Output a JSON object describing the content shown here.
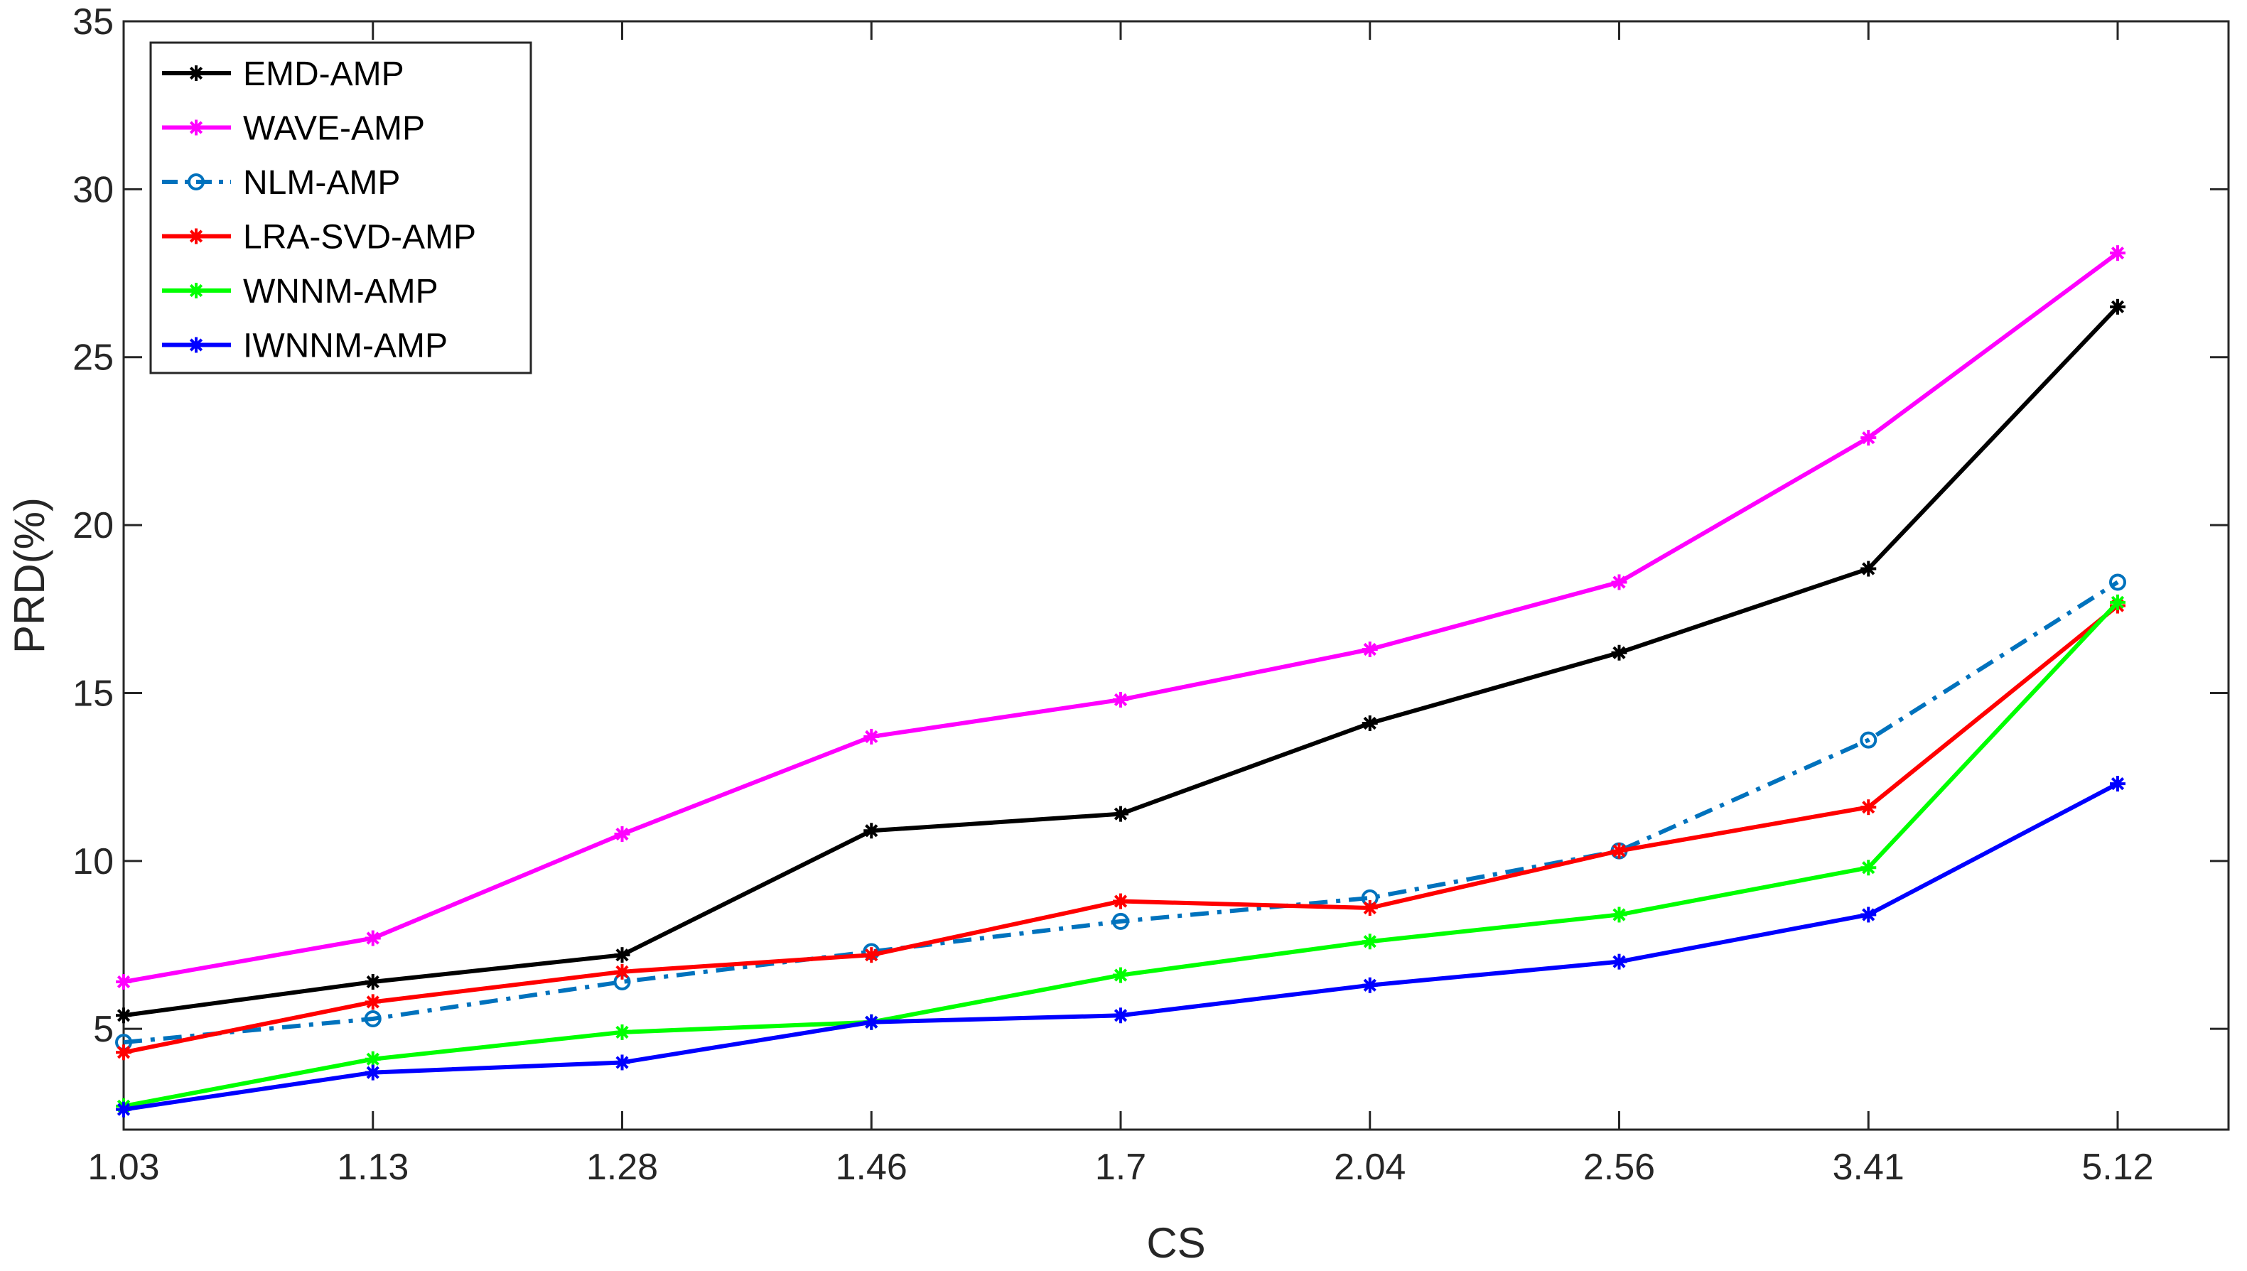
{
  "chart_data": {
    "type": "line",
    "x": [
      "1.03",
      "1.13",
      "1.28",
      "1.46",
      "1.7",
      "2.04",
      "2.56",
      "3.41",
      "5.12"
    ],
    "xlabel": "CS",
    "ylabel": "PRD(%)",
    "ylim": [
      2,
      35
    ],
    "yticks": [
      5,
      10,
      15,
      20,
      25,
      30,
      35
    ],
    "grid": false,
    "legend_position": "top-left",
    "series": [
      {
        "name": "EMD-AMP",
        "color": "#000000",
        "marker": "asterisk",
        "dashed": false,
        "values": [
          5.4,
          6.4,
          7.2,
          10.9,
          11.4,
          14.1,
          16.2,
          18.7,
          26.5
        ]
      },
      {
        "name": "WAVE-AMP",
        "color": "#ff00ff",
        "marker": "asterisk",
        "dashed": false,
        "values": [
          6.4,
          7.7,
          10.8,
          13.7,
          14.8,
          16.3,
          18.3,
          22.6,
          28.1
        ]
      },
      {
        "name": "NLM-AMP",
        "color": "#0072bd",
        "marker": "circle",
        "dashed": true,
        "values": [
          4.6,
          5.3,
          6.4,
          7.3,
          8.2,
          8.9,
          10.3,
          13.6,
          18.3
        ]
      },
      {
        "name": "LRA-SVD-AMP",
        "color": "#ff0000",
        "marker": "asterisk",
        "dashed": false,
        "values": [
          4.3,
          5.8,
          6.7,
          7.2,
          8.8,
          8.6,
          10.3,
          11.6,
          17.6
        ]
      },
      {
        "name": "WNNM-AMP",
        "color": "#00ff00",
        "marker": "asterisk",
        "dashed": false,
        "values": [
          2.7,
          4.1,
          4.9,
          5.2,
          6.6,
          7.6,
          8.4,
          9.8,
          17.7
        ]
      },
      {
        "name": "IWNNM-AMP",
        "color": "#0000ff",
        "marker": "asterisk",
        "dashed": false,
        "values": [
          2.6,
          3.7,
          4.0,
          5.2,
          5.4,
          6.3,
          7.0,
          8.4,
          12.3
        ]
      }
    ]
  }
}
